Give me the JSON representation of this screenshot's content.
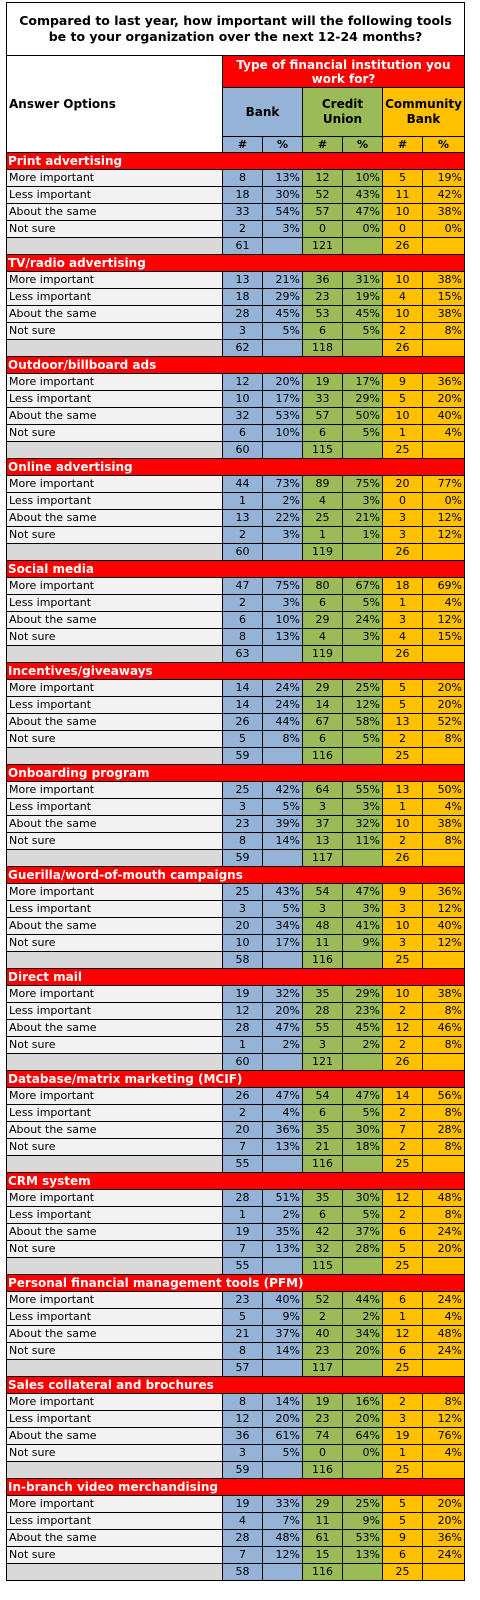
{
  "title": "Compared to last year, how important will the following tools be to your organization over the next 12-24 months?",
  "header": {
    "answer_options": "Answer Options",
    "group_title": "Type of financial institution you work for?",
    "groups": [
      {
        "name": "Bank",
        "sub": [
          "#",
          "%"
        ]
      },
      {
        "name": "Credit Union",
        "sub": [
          "#",
          "%"
        ]
      },
      {
        "name": "Community Bank",
        "sub": [
          "#",
          "%"
        ]
      }
    ]
  },
  "sections": [
    {
      "name": "Print advertising",
      "rows": [
        {
          "label": "More important",
          "values": [
            "8",
            "13%",
            "12",
            "10%",
            "5",
            "19%"
          ]
        },
        {
          "label": "Less important",
          "values": [
            "18",
            "30%",
            "52",
            "43%",
            "11",
            "42%"
          ]
        },
        {
          "label": "About the same",
          "values": [
            "33",
            "54%",
            "57",
            "47%",
            "10",
            "38%"
          ]
        },
        {
          "label": "Not sure",
          "values": [
            "2",
            "3%",
            "0",
            "0%",
            "0",
            "0%"
          ]
        }
      ],
      "totals": [
        "61",
        "121",
        "26"
      ]
    },
    {
      "name": "TV/radio advertising",
      "rows": [
        {
          "label": "More important",
          "values": [
            "13",
            "21%",
            "36",
            "31%",
            "10",
            "38%"
          ]
        },
        {
          "label": "Less important",
          "values": [
            "18",
            "29%",
            "23",
            "19%",
            "4",
            "15%"
          ]
        },
        {
          "label": "About the same",
          "values": [
            "28",
            "45%",
            "53",
            "45%",
            "10",
            "38%"
          ]
        },
        {
          "label": "Not sure",
          "values": [
            "3",
            "5%",
            "6",
            "5%",
            "2",
            "8%"
          ]
        }
      ],
      "totals": [
        "62",
        "118",
        "26"
      ]
    },
    {
      "name": "Outdoor/billboard ads",
      "rows": [
        {
          "label": "More important",
          "values": [
            "12",
            "20%",
            "19",
            "17%",
            "9",
            "36%"
          ]
        },
        {
          "label": "Less important",
          "values": [
            "10",
            "17%",
            "33",
            "29%",
            "5",
            "20%"
          ]
        },
        {
          "label": "About the same",
          "values": [
            "32",
            "53%",
            "57",
            "50%",
            "10",
            "40%"
          ]
        },
        {
          "label": "Not sure",
          "values": [
            "6",
            "10%",
            "6",
            "5%",
            "1",
            "4%"
          ]
        }
      ],
      "totals": [
        "60",
        "115",
        "25"
      ]
    },
    {
      "name": "Online advertising",
      "rows": [
        {
          "label": "More important",
          "values": [
            "44",
            "73%",
            "89",
            "75%",
            "20",
            "77%"
          ]
        },
        {
          "label": "Less important",
          "values": [
            "1",
            "2%",
            "4",
            "3%",
            "0",
            "0%"
          ]
        },
        {
          "label": "About the same",
          "values": [
            "13",
            "22%",
            "25",
            "21%",
            "3",
            "12%"
          ]
        },
        {
          "label": "Not sure",
          "values": [
            "2",
            "3%",
            "1",
            "1%",
            "3",
            "12%"
          ]
        }
      ],
      "totals": [
        "60",
        "119",
        "26"
      ]
    },
    {
      "name": "Social media",
      "rows": [
        {
          "label": "More important",
          "values": [
            "47",
            "75%",
            "80",
            "67%",
            "18",
            "69%"
          ]
        },
        {
          "label": "Less important",
          "values": [
            "2",
            "3%",
            "6",
            "5%",
            "1",
            "4%"
          ]
        },
        {
          "label": "About the same",
          "values": [
            "6",
            "10%",
            "29",
            "24%",
            "3",
            "12%"
          ]
        },
        {
          "label": "Not sure",
          "values": [
            "8",
            "13%",
            "4",
            "3%",
            "4",
            "15%"
          ]
        }
      ],
      "totals": [
        "63",
        "119",
        "26"
      ]
    },
    {
      "name": "Incentives/giveaways",
      "rows": [
        {
          "label": "More important",
          "values": [
            "14",
            "24%",
            "29",
            "25%",
            "5",
            "20%"
          ]
        },
        {
          "label": "Less important",
          "values": [
            "14",
            "24%",
            "14",
            "12%",
            "5",
            "20%"
          ]
        },
        {
          "label": "About the same",
          "values": [
            "26",
            "44%",
            "67",
            "58%",
            "13",
            "52%"
          ]
        },
        {
          "label": "Not sure",
          "values": [
            "5",
            "8%",
            "6",
            "5%",
            "2",
            "8%"
          ]
        }
      ],
      "totals": [
        "59",
        "116",
        "25"
      ]
    },
    {
      "name": "Onboarding program",
      "rows": [
        {
          "label": "More important",
          "values": [
            "25",
            "42%",
            "64",
            "55%",
            "13",
            "50%"
          ]
        },
        {
          "label": "Less important",
          "values": [
            "3",
            "5%",
            "3",
            "3%",
            "1",
            "4%"
          ]
        },
        {
          "label": "About the same",
          "values": [
            "23",
            "39%",
            "37",
            "32%",
            "10",
            "38%"
          ]
        },
        {
          "label": "Not sure",
          "values": [
            "8",
            "14%",
            "13",
            "11%",
            "2",
            "8%"
          ]
        }
      ],
      "totals": [
        "59",
        "117",
        "26"
      ]
    },
    {
      "name": "Guerilla/word-of-mouth campaigns",
      "rows": [
        {
          "label": "More important",
          "values": [
            "25",
            "43%",
            "54",
            "47%",
            "9",
            "36%"
          ]
        },
        {
          "label": "Less important",
          "values": [
            "3",
            "5%",
            "3",
            "3%",
            "3",
            "12%"
          ]
        },
        {
          "label": "About the same",
          "values": [
            "20",
            "34%",
            "48",
            "41%",
            "10",
            "40%"
          ]
        },
        {
          "label": "Not sure",
          "values": [
            "10",
            "17%",
            "11",
            "9%",
            "3",
            "12%"
          ]
        }
      ],
      "totals": [
        "58",
        "116",
        "25"
      ]
    },
    {
      "name": "Direct mail",
      "rows": [
        {
          "label": "More important",
          "values": [
            "19",
            "32%",
            "35",
            "29%",
            "10",
            "38%"
          ]
        },
        {
          "label": "Less important",
          "values": [
            "12",
            "20%",
            "28",
            "23%",
            "2",
            "8%"
          ]
        },
        {
          "label": "About the same",
          "values": [
            "28",
            "47%",
            "55",
            "45%",
            "12",
            "46%"
          ]
        },
        {
          "label": "Not sure",
          "values": [
            "1",
            "2%",
            "3",
            "2%",
            "2",
            "8%"
          ]
        }
      ],
      "totals": [
        "60",
        "121",
        "26"
      ]
    },
    {
      "name": "Database/matrix marketing (MCIF)",
      "rows": [
        {
          "label": "More important",
          "values": [
            "26",
            "47%",
            "54",
            "47%",
            "14",
            "56%"
          ]
        },
        {
          "label": "Less important",
          "values": [
            "2",
            "4%",
            "6",
            "5%",
            "2",
            "8%"
          ]
        },
        {
          "label": "About the same",
          "values": [
            "20",
            "36%",
            "35",
            "30%",
            "7",
            "28%"
          ]
        },
        {
          "label": "Not sure",
          "values": [
            "7",
            "13%",
            "21",
            "18%",
            "2",
            "8%"
          ]
        }
      ],
      "totals": [
        "55",
        "116",
        "25"
      ]
    },
    {
      "name": "CRM system",
      "rows": [
        {
          "label": "More important",
          "values": [
            "28",
            "51%",
            "35",
            "30%",
            "12",
            "48%"
          ]
        },
        {
          "label": "Less important",
          "values": [
            "1",
            "2%",
            "6",
            "5%",
            "2",
            "8%"
          ]
        },
        {
          "label": "About the same",
          "values": [
            "19",
            "35%",
            "42",
            "37%",
            "6",
            "24%"
          ]
        },
        {
          "label": "Not sure",
          "values": [
            "7",
            "13%",
            "32",
            "28%",
            "5",
            "20%"
          ]
        }
      ],
      "totals": [
        "55",
        "115",
        "25"
      ]
    },
    {
      "name": "Personal financial management tools (PFM)",
      "rows": [
        {
          "label": "More important",
          "values": [
            "23",
            "40%",
            "52",
            "44%",
            "6",
            "24%"
          ]
        },
        {
          "label": "Less important",
          "values": [
            "5",
            "9%",
            "2",
            "2%",
            "1",
            "4%"
          ]
        },
        {
          "label": "About the same",
          "values": [
            "21",
            "37%",
            "40",
            "34%",
            "12",
            "48%"
          ]
        },
        {
          "label": "Not sure",
          "values": [
            "8",
            "14%",
            "23",
            "20%",
            "6",
            "24%"
          ]
        }
      ],
      "totals": [
        "57",
        "117",
        "25"
      ]
    },
    {
      "name": "Sales collateral and brochures",
      "rows": [
        {
          "label": "More important",
          "values": [
            "8",
            "14%",
            "19",
            "16%",
            "2",
            "8%"
          ]
        },
        {
          "label": "Less important",
          "values": [
            "12",
            "20%",
            "23",
            "20%",
            "3",
            "12%"
          ]
        },
        {
          "label": "About the same",
          "values": [
            "36",
            "61%",
            "74",
            "64%",
            "19",
            "76%"
          ]
        },
        {
          "label": "Not sure",
          "values": [
            "3",
            "5%",
            "0",
            "0%",
            "1",
            "4%"
          ]
        }
      ],
      "totals": [
        "59",
        "116",
        "25"
      ]
    },
    {
      "name": "In-branch video merchandising",
      "rows": [
        {
          "label": "More important",
          "values": [
            "19",
            "33%",
            "29",
            "25%",
            "5",
            "20%"
          ]
        },
        {
          "label": "Less important",
          "values": [
            "4",
            "7%",
            "11",
            "9%",
            "5",
            "20%"
          ]
        },
        {
          "label": "About the same",
          "values": [
            "28",
            "48%",
            "61",
            "53%",
            "9",
            "36%"
          ]
        },
        {
          "label": "Not sure",
          "values": [
            "7",
            "12%",
            "15",
            "13%",
            "6",
            "24%"
          ]
        }
      ],
      "totals": [
        "58",
        "116",
        "25"
      ]
    }
  ]
}
